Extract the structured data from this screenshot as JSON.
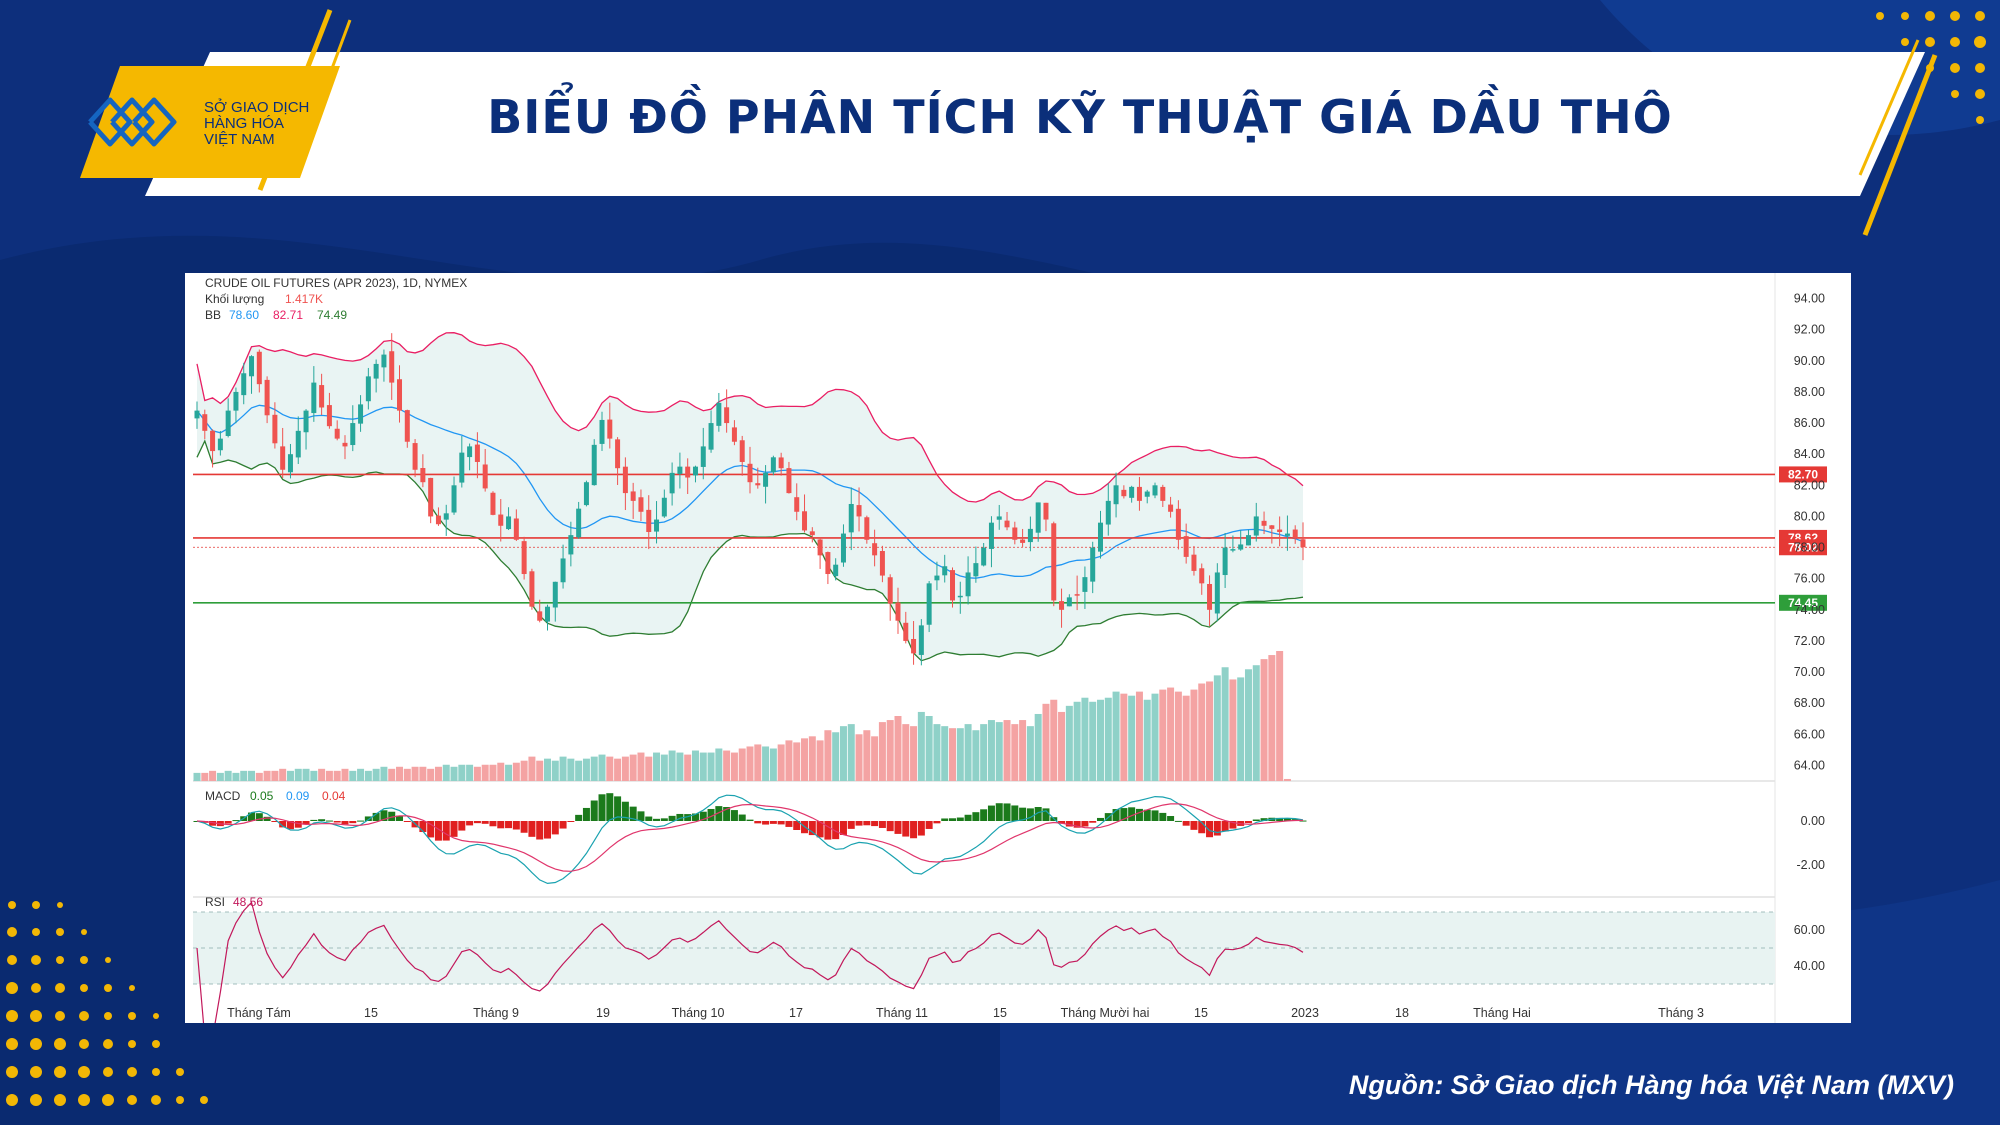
{
  "header": {
    "title": "BIỂU ĐỒ PHÂN TÍCH KỸ THUẬT GIÁ DẦU THÔ",
    "logo_line1": "SỞ GIAO DỊCH",
    "logo_line2": "HÀNG HÓA",
    "logo_line3": "VIỆT NAM"
  },
  "source": "Nguồn: Sở Giao dịch Hàng hóa Việt Nam (MXV)",
  "colors": {
    "up": "#26a69a",
    "down": "#ef5350",
    "band": "#e91e63",
    "bb_mid": "#2196f3",
    "bb_low": "#2e7d32",
    "resistance": "#e53935",
    "support": "#2e9e3a",
    "macd_pos": "#1b7a1b",
    "macd_neg": "#e02020",
    "rsi": "#c2185b"
  },
  "legend": {
    "instrument": "CRUDE OIL FUTURES (APR 2023), 1D, NYMEX",
    "volume_label": "Khối lượng",
    "volume_value": "1.417K",
    "bb_label": "BB",
    "bb_mid": "78.60",
    "bb_up": "82.71",
    "bb_low": "74.49",
    "macd_label": "MACD",
    "macd_v1": "0.05",
    "macd_v2": "0.09",
    "macd_v3": "0.04",
    "rsi_label": "RSI",
    "rsi_value": "48.56"
  },
  "chart_data": {
    "type": "candlestick",
    "price_axis": {
      "ticks": [
        "94.00",
        "92.00",
        "90.00",
        "88.00",
        "86.00",
        "84.00",
        "82.00",
        "80.00",
        "78.00",
        "76.00",
        "74.00",
        "72.00",
        "70.00",
        "68.00",
        "66.00",
        "64.00"
      ],
      "range": [
        63,
        95
      ]
    },
    "macd_axis": {
      "ticks": [
        "0.00",
        "-2.00"
      ]
    },
    "rsi_axis": {
      "ticks": [
        "60.00",
        "40.00"
      ]
    },
    "x_labels": [
      "Tháng Tám",
      "15",
      "Tháng 9",
      "19",
      "Tháng 10",
      "17",
      "Tháng 11",
      "15",
      "Tháng Mười hai",
      "15",
      "2023",
      "18",
      "Tháng Hai",
      "Tháng 3"
    ],
    "levels": [
      {
        "value": 82.7,
        "label": "82.70",
        "color": "#e53935"
      },
      {
        "value": 78.62,
        "label": "78.62",
        "color": "#e53935"
      },
      {
        "value": 78.02,
        "label": "78.02",
        "color": "#e53935"
      },
      {
        "value": 74.45,
        "label": "74.45",
        "color": "#2e9e3a"
      }
    ],
    "closes": [
      86.8,
      85.5,
      84.2,
      85.0,
      86.8,
      88.0,
      89.2,
      90.3,
      88.5,
      86.5,
      84.7,
      83.0,
      84.0,
      85.5,
      86.8,
      88.6,
      87.0,
      85.8,
      85.0,
      84.5,
      86.0,
      87.2,
      89.0,
      89.8,
      90.4,
      88.6,
      86.8,
      84.8,
      83.0,
      82.2,
      80.0,
      79.5,
      80.2,
      82.0,
      84.1,
      84.5,
      83.5,
      81.8,
      80.1,
      79.4,
      80.0,
      78.5,
      76.3,
      74.2,
      73.3,
      74.2,
      75.8,
      77.3,
      78.8,
      80.5,
      82.2,
      84.6,
      86.2,
      85.0,
      83.1,
      81.5,
      81.0,
      80.3,
      79.0,
      79.8,
      81.2,
      82.8,
      83.2,
      82.5,
      83.2,
      84.5,
      86.0,
      87.3,
      86.0,
      84.8,
      83.5,
      82.2,
      82.0,
      82.8,
      83.8,
      83.1,
      81.5,
      80.3,
      79.1,
      78.8,
      77.5,
      76.3,
      76.9,
      78.9,
      80.8,
      80.0,
      78.5,
      77.5,
      76.2,
      74.4,
      73.3,
      72.0,
      71.2,
      73.0,
      75.7,
      76.2,
      76.8,
      74.6,
      74.9,
      76.4,
      77.0,
      78.0,
      79.6,
      80.0,
      79.3,
      78.5,
      78.3,
      79.2,
      80.9,
      79.8,
      74.6,
      74.0,
      74.8,
      75.0,
      76.1,
      78.0,
      79.6,
      81.0,
      82.0,
      81.3,
      81.9,
      81.0,
      81.6,
      82.0,
      81.0,
      80.3,
      78.5,
      77.4,
      76.5,
      75.7,
      74.0,
      76.4,
      78.0,
      77.9,
      78.2,
      78.8,
      80.0,
      79.4,
      79.2,
      79.0,
      78.9,
      78.6,
      78.02
    ],
    "volumes": [
      4,
      4,
      5,
      4,
      5,
      4,
      5,
      5,
      4,
      5,
      5,
      6,
      5,
      6,
      6,
      5,
      6,
      5,
      5,
      6,
      5,
      6,
      5,
      6,
      7,
      6,
      7,
      6,
      7,
      7,
      6,
      7,
      8,
      7,
      8,
      8,
      7,
      8,
      8,
      9,
      8,
      9,
      10,
      12,
      10,
      11,
      10,
      12,
      11,
      10,
      11,
      12,
      13,
      12,
      11,
      12,
      13,
      14,
      12,
      14,
      13,
      15,
      14,
      13,
      15,
      14,
      14,
      16,
      15,
      14,
      16,
      17,
      18,
      17,
      16,
      18,
      20,
      19,
      21,
      22,
      20,
      25,
      24,
      27,
      28,
      23,
      25,
      22,
      29,
      30,
      32,
      28,
      27,
      34,
      32,
      28,
      27,
      26,
      26,
      28,
      25,
      28,
      30,
      29,
      30,
      28,
      30,
      27,
      33,
      38,
      40,
      34,
      37,
      39,
      41,
      39,
      40,
      41,
      44,
      43,
      42,
      44,
      40,
      43,
      45,
      46,
      44,
      42,
      45,
      48,
      49,
      52,
      56,
      50,
      51,
      55,
      57,
      60,
      62,
      64,
      1
    ]
  }
}
